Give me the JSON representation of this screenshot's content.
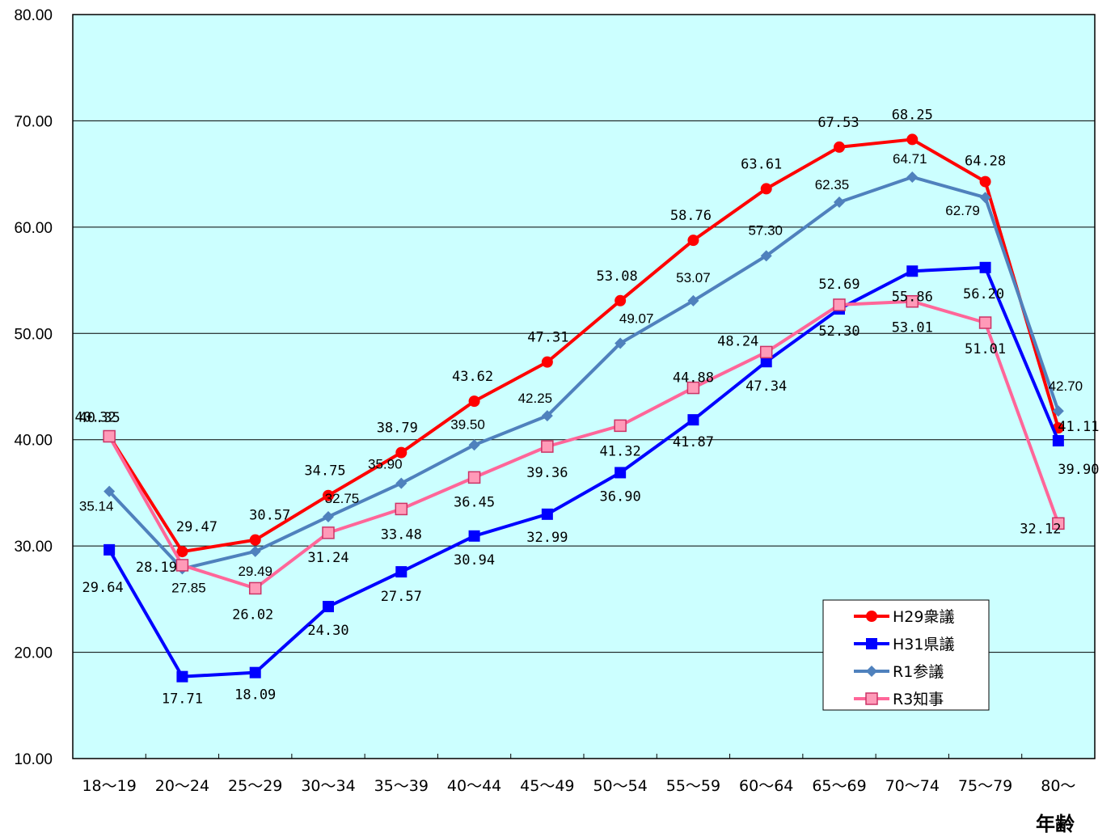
{
  "chart_data": {
    "type": "line",
    "xlabel": "年齢",
    "ylim": [
      10,
      80
    ],
    "y_ticks": [
      "10.00",
      "20.00",
      "30.00",
      "40.00",
      "50.00",
      "60.00",
      "70.00",
      "80.00"
    ],
    "categories": [
      "18～19",
      "20～24",
      "25～29",
      "30～34",
      "35～39",
      "40～44",
      "45～49",
      "50～54",
      "55～59",
      "60～64",
      "65～69",
      "70～74",
      "75～79",
      "80～"
    ],
    "grid": true,
    "legend_position": "bottom-right",
    "series": [
      {
        "name": "H29衆議",
        "color": "#ff0000",
        "marker": "circle",
        "values": [
          40.35,
          29.47,
          30.57,
          34.75,
          38.79,
          43.62,
          47.31,
          53.08,
          58.76,
          63.61,
          67.53,
          68.25,
          64.28,
          41.11
        ],
        "labels": [
          "40.35",
          "29.47",
          "30.57",
          "34.75",
          "38.79",
          "43.62",
          "47.31",
          "53.08",
          "58.76",
          "63.61",
          "67.53",
          "68.25",
          "64.28",
          "41.11"
        ]
      },
      {
        "name": "H31県議",
        "color": "#0000ff",
        "marker": "square",
        "values": [
          29.64,
          17.71,
          18.09,
          24.3,
          27.57,
          30.94,
          32.99,
          36.9,
          41.87,
          47.34,
          52.3,
          55.86,
          56.2,
          39.9
        ],
        "labels": [
          "29.64",
          "17.71",
          "18.09",
          "24.30",
          "27.57",
          "30.94",
          "32.99",
          "36.90",
          "41.87",
          "47.34",
          "52.30",
          "55.86",
          "56.20",
          "39.90"
        ]
      },
      {
        "name": "R1参議",
        "color": "#4f81bd",
        "marker": "diamond",
        "values": [
          35.14,
          27.85,
          29.49,
          32.75,
          35.9,
          39.5,
          42.25,
          49.07,
          53.07,
          57.3,
          62.35,
          64.71,
          62.79,
          42.7
        ],
        "labels": [
          "35.14",
          "27.85",
          "29.49",
          "32.75",
          "35.90",
          "39.50",
          "42.25",
          "49.07",
          "53.07",
          "57.30",
          "62.35",
          "64.71",
          "62.79",
          "42.70"
        ]
      },
      {
        "name": "R3知事",
        "color": "#ff6699",
        "marker": "square-open",
        "values": [
          40.32,
          28.19,
          26.02,
          31.24,
          33.48,
          36.45,
          39.36,
          41.32,
          44.88,
          48.24,
          52.69,
          53.01,
          51.01,
          32.12
        ],
        "labels": [
          "40.32",
          "28.19",
          "26.02",
          "31.24",
          "33.48",
          "36.45",
          "39.36",
          "41.32",
          "44.88",
          "48.24",
          "52.69",
          "53.01",
          "51.01",
          "32.12"
        ]
      }
    ]
  }
}
